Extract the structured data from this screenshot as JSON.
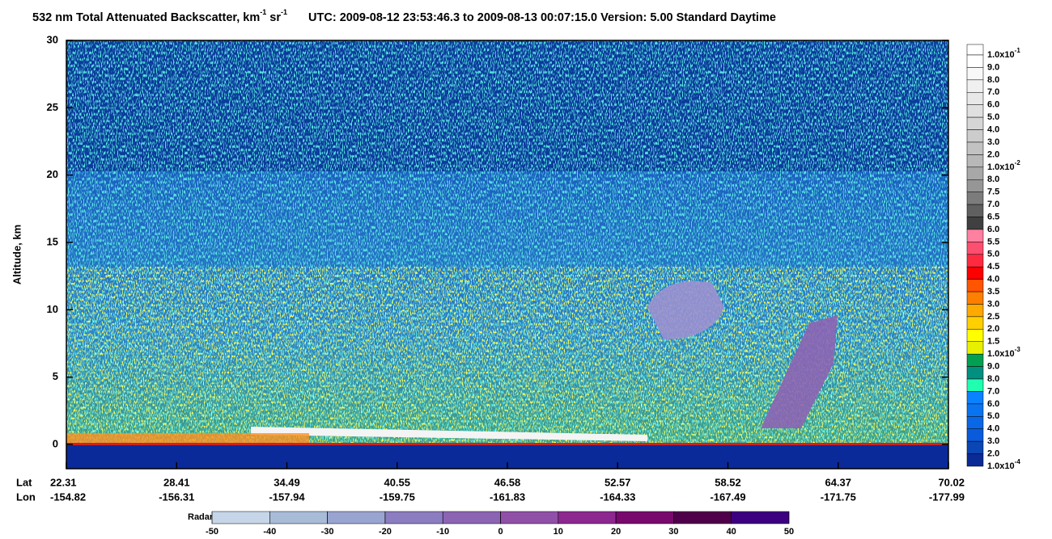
{
  "chart_data": {
    "type": "curtain",
    "title_parts": [
      "532 nm Total Attenuated Backscatter, km",
      "-1",
      " sr",
      "-1",
      "UTC:  2009-08-12 23:53:46.3  to  2009-08-13 00:07:15.0     Version: 5.00  Standard  Daytime"
    ],
    "y_label": "Altitude, km",
    "ylim": [
      -1.8,
      30
    ],
    "yticks": [
      0,
      5,
      10,
      15,
      20,
      25,
      30
    ],
    "x_row_labels": [
      "Lat",
      "Lon"
    ],
    "x_ticks": [
      {
        "lat": "22.31",
        "lon": "-154.82"
      },
      {
        "lat": "28.41",
        "lon": "-156.31"
      },
      {
        "lat": "34.49",
        "lon": "-157.94"
      },
      {
        "lat": "40.55",
        "lon": "-159.75"
      },
      {
        "lat": "46.58",
        "lon": "-161.83"
      },
      {
        "lat": "52.57",
        "lon": "-164.33"
      },
      {
        "lat": "58.52",
        "lon": "-167.49"
      },
      {
        "lat": "64.37",
        "lon": "-171.75"
      },
      {
        "lat": "70.02",
        "lon": "-177.99"
      }
    ],
    "backscatter_colorbar": {
      "labels": [
        {
          "base": "1.0x10",
          "exp": "-1"
        },
        "9.0",
        "8.0",
        "7.0",
        "6.0",
        "5.0",
        "4.0",
        "3.0",
        "2.0",
        {
          "base": "1.0x10",
          "exp": "-2"
        },
        "8.0",
        "7.5",
        "7.0",
        "6.5",
        "6.0",
        "5.5",
        "5.0",
        "4.5",
        "4.0",
        "3.5",
        "3.0",
        "2.5",
        "2.0",
        "1.5",
        {
          "base": "1.0x10",
          "exp": "-3"
        },
        "9.0",
        "8.0",
        "7.0",
        "6.0",
        "5.0",
        "4.0",
        "3.0",
        "2.0",
        {
          "base": "1.0x10",
          "exp": "-4"
        }
      ],
      "colors": [
        "#ffffff",
        "#f8f8f8",
        "#f0f0f0",
        "#e8e8e8",
        "#e0e0e0",
        "#d6d6d6",
        "#cccccc",
        "#c2c2c2",
        "#b8b8b8",
        "#a8a8a8",
        "#969696",
        "#7c7c7c",
        "#606060",
        "#404040",
        "#ff80a0",
        "#ff4f70",
        "#ff2a40",
        "#ff0000",
        "#ff5500",
        "#ff7f00",
        "#ffaa00",
        "#ffd000",
        "#ffff00",
        "#e8f000",
        "#00a050",
        "#009080",
        "#20ffb0",
        "#0a82ff",
        "#0a74f0",
        "#0a68e6",
        "#0a5adc",
        "#0a46b4",
        "#0a2a96"
      ]
    },
    "radar_colorbar": {
      "label": "Radar_Reflectivity",
      "ticks": [
        -50,
        -40,
        -30,
        -20,
        -10,
        0,
        10,
        20,
        30,
        40,
        50
      ],
      "colors": [
        "#c6d6e8",
        "#a8bcd8",
        "#9aa4d0",
        "#8c7cc0",
        "#8c64b4",
        "#9050a8",
        "#8c2890",
        "#780a6e",
        "#50004a",
        "#3c0080"
      ]
    }
  }
}
